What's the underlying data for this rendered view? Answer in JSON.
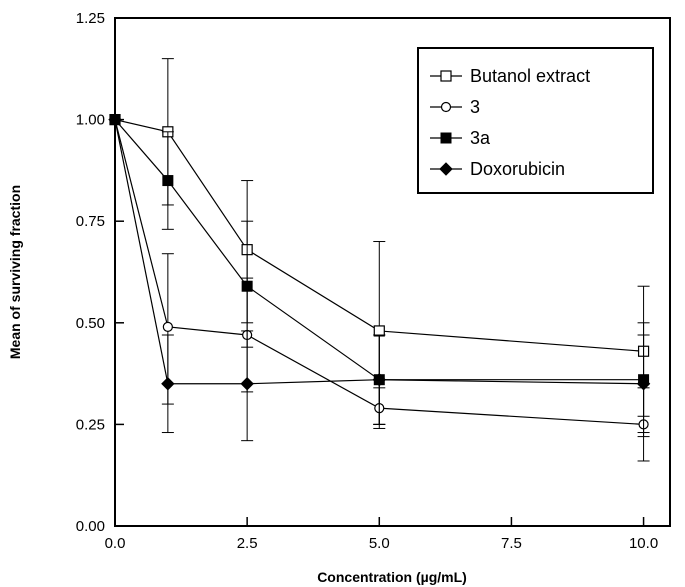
{
  "chart_data": {
    "type": "line",
    "title": "",
    "xlabel": "Concentration (µg/mL)",
    "ylabel": "Mean of surviving fraction",
    "xlim": [
      0,
      10.5
    ],
    "ylim": [
      0,
      1.25
    ],
    "xticks": [
      "0.0",
      "2.5",
      "5.0",
      "7.5",
      "10.0"
    ],
    "yticks": [
      "0.00",
      "0.25",
      "0.50",
      "0.75",
      "1.00",
      "1.25"
    ],
    "grid": false,
    "legend_position": "top-right",
    "x": [
      0,
      1,
      2.5,
      5,
      10
    ],
    "series": [
      {
        "name": "Butanol extract",
        "marker": "open-square",
        "values": [
          1.0,
          0.97,
          0.68,
          0.48,
          0.43
        ],
        "error_low": [
          1.0,
          0.79,
          0.5,
          0.25,
          0.27
        ],
        "error_high": [
          1.0,
          1.15,
          0.85,
          0.7,
          0.59
        ]
      },
      {
        "name": "3",
        "marker": "open-circle",
        "values": [
          1.0,
          0.49,
          0.47,
          0.29,
          0.25
        ],
        "error_low": [
          1.0,
          0.3,
          0.33,
          0.24,
          0.16
        ],
        "error_high": [
          1.0,
          0.67,
          0.61,
          0.34,
          0.34
        ]
      },
      {
        "name": "3a",
        "marker": "filled-square",
        "values": [
          1.0,
          0.85,
          0.59,
          0.36,
          0.36
        ],
        "error_low": [
          1.0,
          0.73,
          0.44,
          0.25,
          0.22
        ],
        "error_high": [
          1.0,
          0.97,
          0.75,
          0.47,
          0.5
        ]
      },
      {
        "name": "Doxorubicin",
        "marker": "filled-diamond",
        "values": [
          1.0,
          0.35,
          0.35,
          0.36,
          0.35
        ],
        "error_low": [
          1.0,
          0.23,
          0.21,
          0.25,
          0.23
        ],
        "error_high": [
          1.0,
          0.47,
          0.48,
          0.47,
          0.47
        ]
      }
    ]
  }
}
